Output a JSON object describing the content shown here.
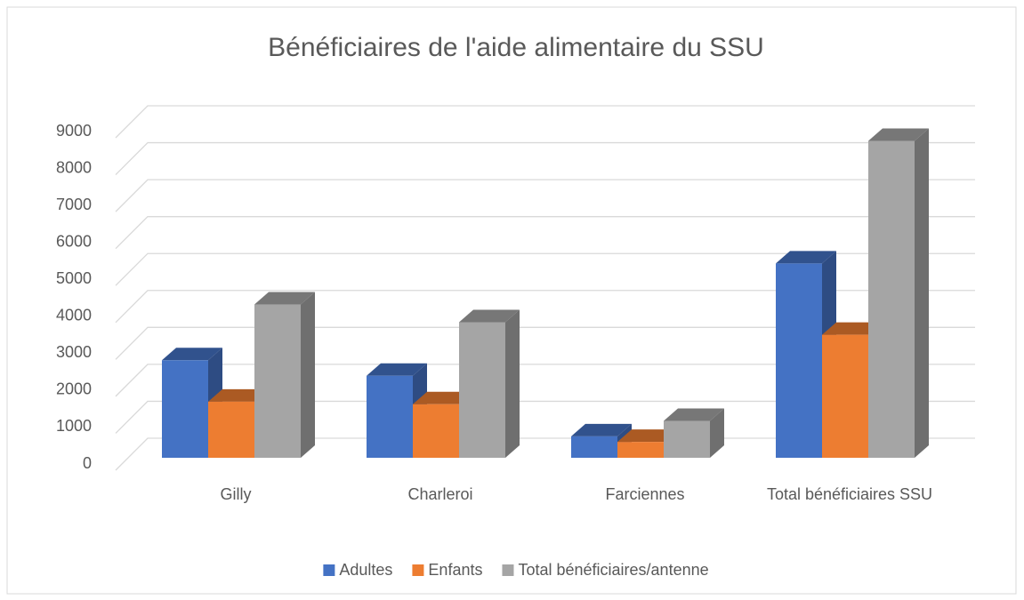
{
  "chart_data": {
    "type": "bar3d",
    "title": "Bénéficiaires de l'aide alimentaire du SSU",
    "categories": [
      "Gilly",
      "Charleroi",
      "Farciennes",
      "Total bénéficiaires SSU"
    ],
    "series": [
      {
        "name": "Adultes",
        "color": "#4472c4",
        "values": [
          2640,
          2220,
          580,
          5260
        ]
      },
      {
        "name": "Enfants",
        "color": "#ed7d31",
        "values": [
          1520,
          1450,
          430,
          3330
        ]
      },
      {
        "name": "Total bénéficiaires/antenne",
        "color": "#a5a5a5",
        "values": [
          4150,
          3670,
          1000,
          8580
        ]
      }
    ],
    "ylim": [
      0,
      9000
    ],
    "yticks": [
      0,
      1000,
      2000,
      3000,
      4000,
      5000,
      6000,
      7000,
      8000,
      9000
    ],
    "grid": true,
    "legend": "bottom"
  }
}
